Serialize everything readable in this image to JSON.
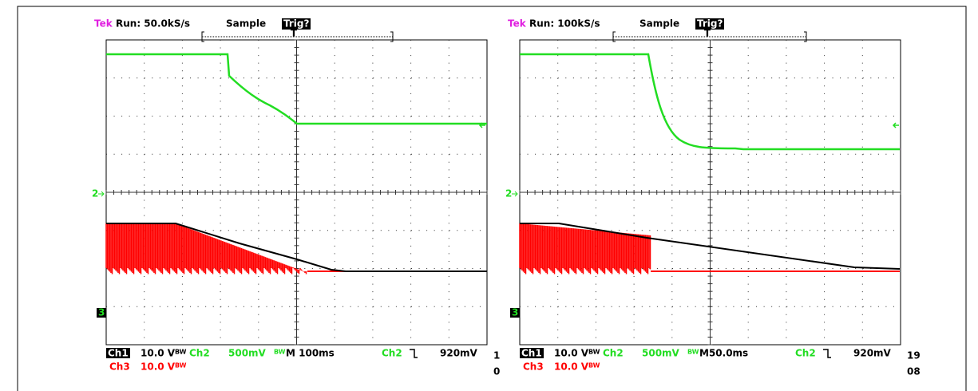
{
  "panels": [
    {
      "header": {
        "brand": "Tek",
        "run": "Run: 50.0kS/s",
        "mode": "Sample",
        "trigger": "Trig?",
        "trigger_marker": "T"
      },
      "markers": {
        "ch2": "2",
        "ch3": "3"
      },
      "footer": {
        "ch1": "Ch1",
        "ch1_scale": "10.0 V",
        "ch1_bw": "BW",
        "ch2": "Ch2",
        "ch2_scale": "500mV",
        "ch2_bw": "BW",
        "timebase": "M 100ms",
        "trig_source": "Ch2",
        "trig_level": "920mV",
        "date_top": "1",
        "date_bottom": "0",
        "ch3": "Ch3",
        "ch3_scale": "10.0 V",
        "ch3_bw": "BW"
      }
    },
    {
      "header": {
        "brand": "Tek",
        "run": "Run: 100kS/s",
        "mode": "Sample",
        "trigger": "Trig?",
        "trigger_marker": "T"
      },
      "markers": {
        "ch2": "2",
        "ch3": "3"
      },
      "footer": {
        "ch1": "Ch1",
        "ch1_scale": "10.0 V",
        "ch1_bw": "BW",
        "ch2": "Ch2",
        "ch2_scale": "500mV",
        "ch2_bw": "BW",
        "timebase": "M50.0ms",
        "trig_source": "Ch2",
        "trig_level": "920mV",
        "date_top": "19",
        "date_bottom": "08",
        "ch3": "Ch3",
        "ch3_scale": "10.0 V",
        "ch3_bw": "BW"
      }
    }
  ]
}
